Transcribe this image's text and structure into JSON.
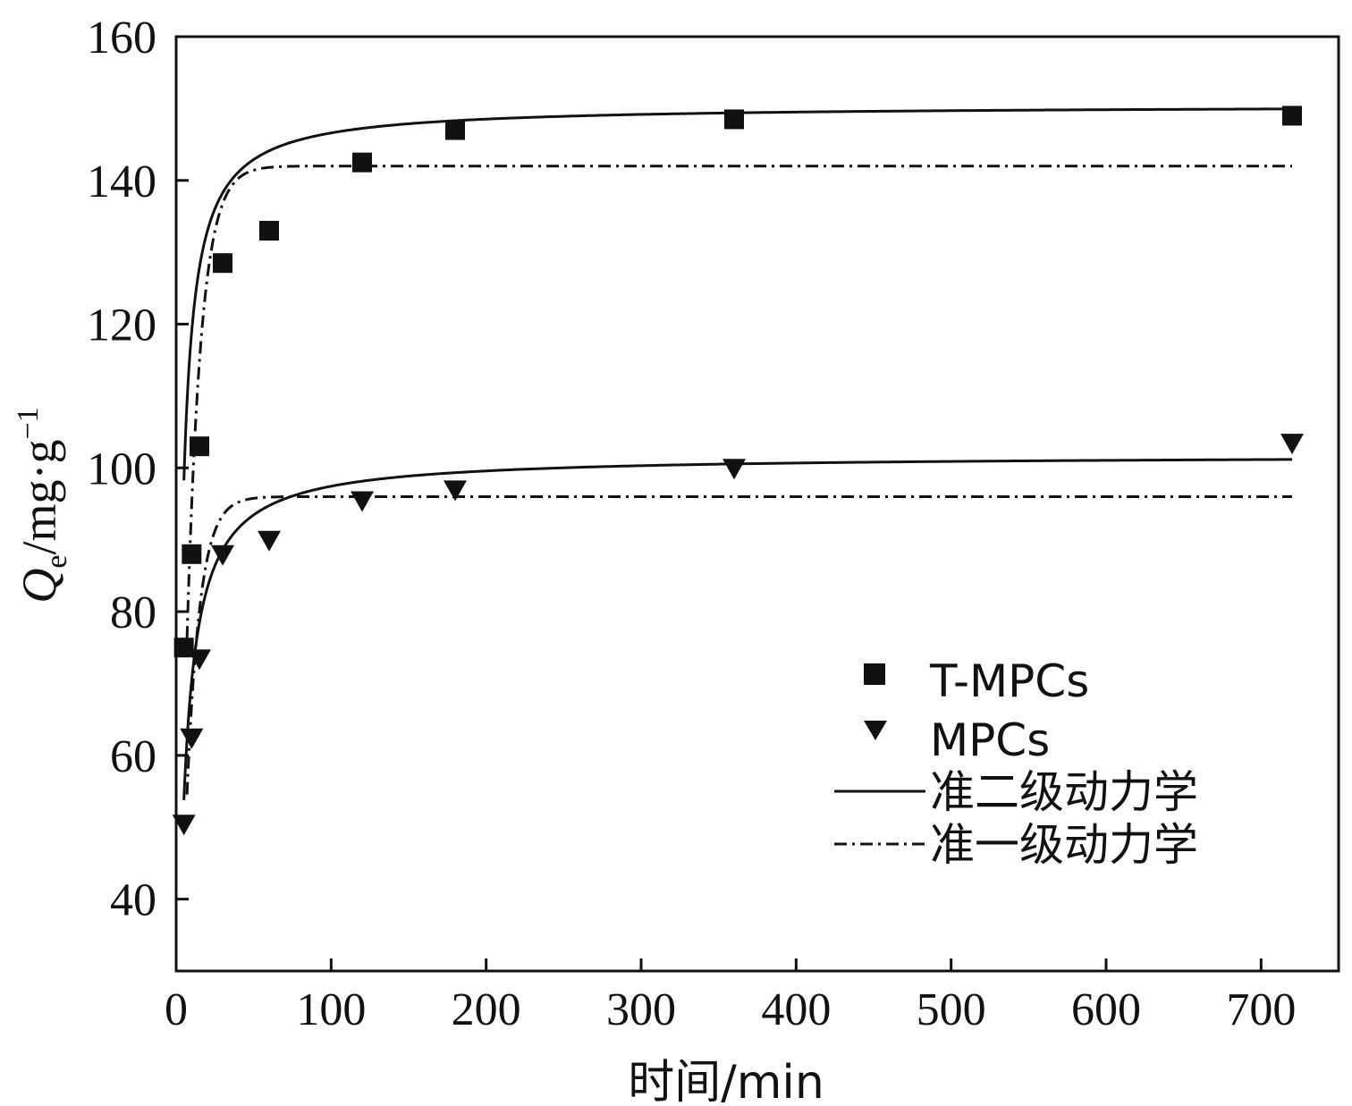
{
  "chart_data": {
    "type": "scatter",
    "xlabel": "时间/min",
    "ylabel": {
      "symbol": "Q",
      "subscript": "e",
      "unit": "/mg·g",
      "superscript": "−1"
    },
    "xlim": [
      0,
      750
    ],
    "ylim": [
      30,
      160
    ],
    "xticks": [
      0,
      100,
      200,
      300,
      400,
      500,
      600,
      700
    ],
    "yticks": [
      40,
      60,
      80,
      100,
      120,
      140,
      160
    ],
    "grid": false,
    "legend_position": "bottom-right",
    "series": [
      {
        "name": "T-MPCs",
        "marker": "square",
        "points": [
          {
            "x": 5,
            "y": 75
          },
          {
            "x": 10,
            "y": 88
          },
          {
            "x": 15,
            "y": 103
          },
          {
            "x": 30,
            "y": 128.5
          },
          {
            "x": 60,
            "y": 133
          },
          {
            "x": 120,
            "y": 142.5
          },
          {
            "x": 180,
            "y": 147
          },
          {
            "x": 360,
            "y": 148.5
          },
          {
            "x": 720,
            "y": 149
          }
        ]
      },
      {
        "name": "MPCs",
        "marker": "triangle-down",
        "points": [
          {
            "x": 5,
            "y": 50.5
          },
          {
            "x": 10,
            "y": 62.5
          },
          {
            "x": 15,
            "y": 73.5
          },
          {
            "x": 30,
            "y": 88
          },
          {
            "x": 60,
            "y": 90
          },
          {
            "x": 120,
            "y": 95.5
          },
          {
            "x": 180,
            "y": 97
          },
          {
            "x": 360,
            "y": 100
          },
          {
            "x": 720,
            "y": 103.5
          }
        ]
      }
    ],
    "fits": [
      {
        "name": "准二级动力学",
        "style": "solid",
        "curves": [
          {
            "model": "pseudo-second-order",
            "qe": 150.5,
            "k": 0.0025,
            "x_start": 5,
            "x_end": 720
          },
          {
            "model": "pseudo-second-order",
            "qe": 101.8,
            "k": 0.0022,
            "x_start": 5,
            "x_end": 720
          }
        ]
      },
      {
        "name": "准一级动力学",
        "style": "dash-dot",
        "curves": [
          {
            "model": "pseudo-first-order",
            "qe": 142,
            "k": 0.11,
            "x_start": 7,
            "x_end": 720
          },
          {
            "model": "pseudo-first-order",
            "qe": 96,
            "k": 0.12,
            "x_start": 7,
            "x_end": 720
          }
        ]
      }
    ],
    "legend": [
      {
        "label": "T-MPCs",
        "marker": "square"
      },
      {
        "label": "MPCs",
        "marker": "triangle-down"
      },
      {
        "label": "准二级动力学",
        "line": "solid"
      },
      {
        "label": "准一级动力学",
        "line": "dash-dot"
      }
    ]
  }
}
